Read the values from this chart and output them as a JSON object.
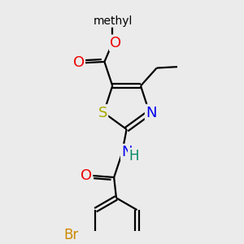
{
  "background_color": "#ebebeb",
  "atoms": {
    "S": {
      "color": "#aaaa00",
      "fontsize": 13
    },
    "N": {
      "color": "#0000ee",
      "fontsize": 13
    },
    "O": {
      "color": "#ee0000",
      "fontsize": 13
    },
    "Br": {
      "color": "#cc8800",
      "fontsize": 12
    },
    "H": {
      "color": "#008866",
      "fontsize": 12
    }
  },
  "figsize": [
    3.0,
    3.0
  ],
  "dpi": 100,
  "lw": 1.6,
  "xlim": [
    0,
    10
  ],
  "ylim": [
    0,
    10
  ]
}
